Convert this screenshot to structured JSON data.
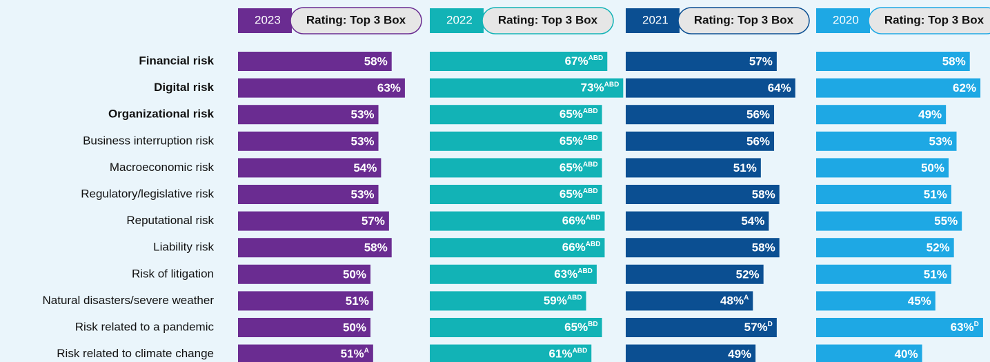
{
  "chart_data": {
    "type": "bar",
    "subtitle": "Rating: Top 3 Box",
    "categories": [
      "Financial risk",
      "Digital risk",
      "Organizational risk",
      "Business interruption risk",
      "Macroeconomic risk",
      "Regulatory/legislative risk",
      "Reputational risk",
      "Liability risk",
      "Risk of litigation",
      "Natural disasters/severe weather",
      "Risk related to a pandemic",
      "Risk related to climate change"
    ],
    "series": [
      {
        "name": "2023",
        "color": "#6a2c91",
        "values": [
          58,
          63,
          53,
          53,
          54,
          53,
          57,
          58,
          50,
          51,
          50,
          51
        ],
        "value_labels": [
          "58%",
          "63%",
          "53%",
          "53%",
          "54%",
          "53%",
          "57%",
          "58%",
          "50%",
          "51%",
          "50%",
          "51%A"
        ]
      },
      {
        "name": "2022",
        "color": "#12b3b6",
        "values": [
          67,
          73,
          65,
          65,
          65,
          65,
          66,
          66,
          63,
          59,
          65,
          61
        ],
        "value_labels": [
          "67%ABD",
          "73%ABD",
          "65%ABD",
          "65%ABD",
          "65%ABD",
          "65%ABD",
          "66%ABD",
          "66%ABD",
          "63%ABD",
          "59%ABD",
          "65%BD",
          "61%ABD"
        ]
      },
      {
        "name": "2021",
        "color": "#0b4f92",
        "values": [
          57,
          64,
          56,
          56,
          51,
          58,
          54,
          58,
          52,
          48,
          57,
          49
        ],
        "value_labels": [
          "57%",
          "64%",
          "56%",
          "56%",
          "51%",
          "58%",
          "54%",
          "58%",
          "52%",
          "48%A",
          "57%D",
          "49%"
        ]
      },
      {
        "name": "2020",
        "color": "#1ea8e4",
        "values": [
          58,
          62,
          49,
          53,
          50,
          51,
          55,
          52,
          51,
          45,
          63,
          40
        ],
        "value_labels": [
          "58%",
          "62%",
          "49%",
          "53%",
          "50%",
          "51%",
          "55%",
          "52%",
          "51%",
          "45%",
          "63%D",
          "40%"
        ]
      }
    ]
  }
}
